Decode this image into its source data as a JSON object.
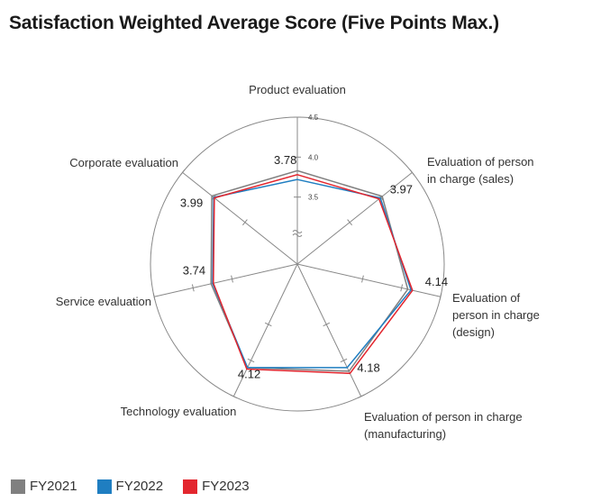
{
  "chart_data": {
    "type": "radar",
    "title": "Satisfaction Weighted Average Score (Five Points Max.)",
    "axes": [
      {
        "lines": [
          "Product evaluation"
        ],
        "anchor": "middle"
      },
      {
        "lines": [
          "Evaluation of person",
          "in charge (sales)"
        ],
        "anchor": "start"
      },
      {
        "lines": [
          "Evaluation of",
          "person in charge",
          "(design)"
        ],
        "anchor": "start"
      },
      {
        "lines": [
          "Evaluation of person in charge",
          "(manufacturing)"
        ],
        "anchor": "start"
      },
      {
        "lines": [
          "Technology evaluation"
        ],
        "anchor": "middle"
      },
      {
        "lines": [
          "Service evaluation"
        ],
        "anchor": "end"
      },
      {
        "lines": [
          "Corporate evaluation"
        ],
        "anchor": "end"
      }
    ],
    "ticks": [
      {
        "value": 3.5,
        "label": "3.5"
      },
      {
        "value": 4.0,
        "label": "4.0"
      },
      {
        "value": 4.5,
        "label": "4.5"
      }
    ],
    "range": [
      3.0,
      4.5
    ],
    "axis_break": true,
    "series": [
      {
        "name": "FY2021",
        "color": "#808080",
        "values": [
          3.83,
          4.02,
          4.08,
          4.15,
          4.1,
          3.77,
          4.03
        ]
      },
      {
        "name": "FY2022",
        "color": "#1f7ec1",
        "values": [
          3.72,
          3.99,
          4.12,
          4.1,
          4.1,
          3.75,
          4.0
        ]
      },
      {
        "name": "FY2023",
        "color": "#e3262e",
        "values": [
          3.78,
          3.97,
          4.14,
          4.18,
          4.12,
          3.74,
          3.99
        ]
      }
    ],
    "value_labels": [
      "3.78",
      "3.97",
      "4.14",
      "4.18",
      "4.12",
      "3.74",
      "3.99"
    ],
    "legend": "bottom-left"
  }
}
